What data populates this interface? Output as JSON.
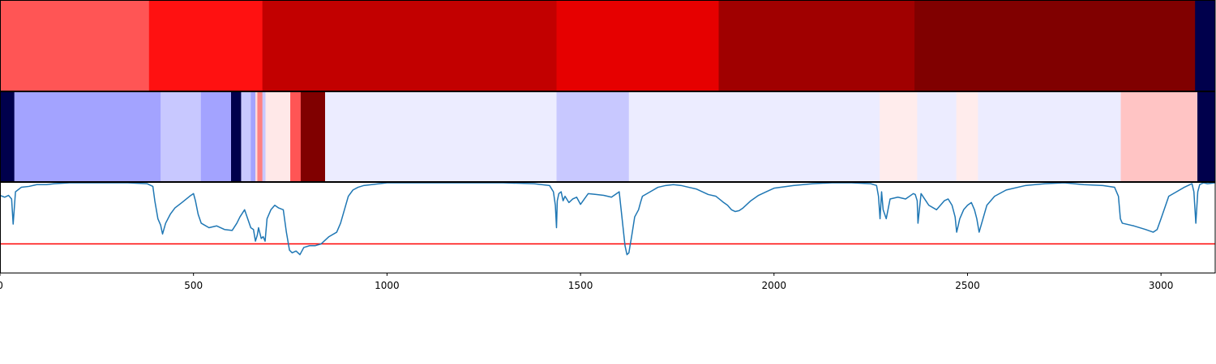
{
  "chart_data": {
    "type": "heatmap",
    "x_ticks": [
      0,
      500,
      1000,
      1500,
      2000,
      2500,
      3000
    ],
    "xlim": [
      0,
      3140
    ],
    "rows": [
      {
        "segments": [
          {
            "start": 0,
            "end": 385,
            "color": "#ff5555"
          },
          {
            "start": 385,
            "end": 678,
            "color": "#ff1111"
          },
          {
            "start": 678,
            "end": 1438,
            "color": "#c20000"
          },
          {
            "start": 1438,
            "end": 1857,
            "color": "#e60000"
          },
          {
            "start": 1857,
            "end": 2363,
            "color": "#a00000"
          },
          {
            "start": 2363,
            "end": 3088,
            "color": "#800000"
          },
          {
            "start": 3088,
            "end": 3140,
            "color": "#00004c"
          }
        ]
      },
      {
        "segments": [
          {
            "start": 0,
            "end": 37,
            "color": "#00004c"
          },
          {
            "start": 37,
            "end": 415,
            "color": "#a3a3ff"
          },
          {
            "start": 415,
            "end": 519,
            "color": "#c8c8ff"
          },
          {
            "start": 519,
            "end": 597,
            "color": "#a3a3ff"
          },
          {
            "start": 597,
            "end": 623,
            "color": "#00004c"
          },
          {
            "start": 623,
            "end": 648,
            "color": "#c8c8ff"
          },
          {
            "start": 648,
            "end": 660,
            "color": "#a3a3ff"
          },
          {
            "start": 660,
            "end": 665,
            "color": "#ffdcdc"
          },
          {
            "start": 665,
            "end": 678,
            "color": "#ff8080"
          },
          {
            "start": 678,
            "end": 686,
            "color": "#c8c8ff"
          },
          {
            "start": 686,
            "end": 750,
            "color": "#ffe8e8"
          },
          {
            "start": 750,
            "end": 777,
            "color": "#ff5555"
          },
          {
            "start": 777,
            "end": 840,
            "color": "#800000"
          },
          {
            "start": 840,
            "end": 1438,
            "color": "#ececff"
          },
          {
            "start": 1438,
            "end": 1625,
            "color": "#c8c8ff"
          },
          {
            "start": 1625,
            "end": 2273,
            "color": "#ececff"
          },
          {
            "start": 2273,
            "end": 2370,
            "color": "#ffecec"
          },
          {
            "start": 2370,
            "end": 2471,
            "color": "#ececff"
          },
          {
            "start": 2471,
            "end": 2527,
            "color": "#ffecec"
          },
          {
            "start": 2527,
            "end": 2896,
            "color": "#ececff"
          },
          {
            "start": 2896,
            "end": 3094,
            "color": "#ffc4c4"
          },
          {
            "start": 3094,
            "end": 3140,
            "color": "#00004c"
          }
        ]
      }
    ],
    "line": {
      "color": "#1f77b4",
      "ylim": [
        0,
        1
      ],
      "x": [
        0,
        12,
        22,
        30,
        34,
        40,
        55,
        75,
        95,
        120,
        140,
        180,
        250,
        330,
        380,
        395,
        400,
        408,
        415,
        420,
        428,
        440,
        452,
        470,
        490,
        500,
        505,
        512,
        520,
        540,
        560,
        580,
        600,
        612,
        620,
        632,
        640,
        648,
        655,
        660,
        665,
        668,
        675,
        680,
        685,
        690,
        700,
        710,
        720,
        732,
        740,
        748,
        755,
        765,
        775,
        785,
        800,
        815,
        830,
        850,
        870,
        880,
        890,
        900,
        912,
        925,
        940,
        960,
        980,
        1000,
        1100,
        1200,
        1300,
        1380,
        1420,
        1430,
        1435,
        1438,
        1440,
        1444,
        1450,
        1455,
        1460,
        1470,
        1480,
        1490,
        1500,
        1510,
        1520,
        1540,
        1560,
        1580,
        1600,
        1605,
        1610,
        1615,
        1620,
        1625,
        1628,
        1632,
        1640,
        1650,
        1655,
        1660,
        1680,
        1700,
        1720,
        1740,
        1760,
        1780,
        1800,
        1830,
        1850,
        1870,
        1880,
        1890,
        1900,
        1910,
        1920,
        1940,
        1960,
        1980,
        2000,
        2050,
        2100,
        2150,
        2200,
        2250,
        2265,
        2270,
        2274,
        2278,
        2282,
        2290,
        2300,
        2320,
        2340,
        2360,
        2365,
        2370,
        2372,
        2380,
        2400,
        2420,
        2440,
        2450,
        2460,
        2468,
        2472,
        2480,
        2490,
        2500,
        2510,
        2518,
        2524,
        2530,
        2550,
        2570,
        2600,
        2650,
        2700,
        2750,
        2800,
        2850,
        2880,
        2890,
        2895,
        2900,
        2930,
        2960,
        2980,
        2990,
        3000,
        3020,
        3040,
        3060,
        3080,
        3085,
        3090,
        3095,
        3100,
        3110,
        3120,
        3140
      ],
      "y": [
        0.86,
        0.84,
        0.86,
        0.82,
        0.54,
        0.9,
        0.95,
        0.96,
        0.98,
        0.98,
        0.99,
        1.0,
        1.0,
        1.0,
        0.99,
        0.96,
        0.8,
        0.6,
        0.53,
        0.43,
        0.55,
        0.65,
        0.72,
        0.78,
        0.85,
        0.88,
        0.8,
        0.65,
        0.55,
        0.5,
        0.52,
        0.48,
        0.47,
        0.55,
        0.62,
        0.7,
        0.6,
        0.5,
        0.48,
        0.35,
        0.42,
        0.5,
        0.38,
        0.4,
        0.35,
        0.6,
        0.7,
        0.75,
        0.72,
        0.7,
        0.45,
        0.25,
        0.22,
        0.24,
        0.2,
        0.28,
        0.3,
        0.3,
        0.32,
        0.4,
        0.45,
        0.55,
        0.7,
        0.85,
        0.92,
        0.95,
        0.97,
        0.98,
        0.99,
        1.0,
        1.0,
        1.0,
        1.0,
        0.99,
        0.97,
        0.9,
        0.75,
        0.5,
        0.8,
        0.88,
        0.9,
        0.8,
        0.85,
        0.78,
        0.82,
        0.84,
        0.76,
        0.82,
        0.88,
        0.87,
        0.86,
        0.84,
        0.9,
        0.7,
        0.5,
        0.3,
        0.2,
        0.22,
        0.3,
        0.4,
        0.62,
        0.7,
        0.78,
        0.85,
        0.9,
        0.95,
        0.97,
        0.98,
        0.97,
        0.95,
        0.93,
        0.87,
        0.85,
        0.78,
        0.75,
        0.7,
        0.68,
        0.69,
        0.72,
        0.8,
        0.86,
        0.9,
        0.94,
        0.97,
        0.99,
        1.0,
        1.0,
        0.99,
        0.97,
        0.85,
        0.6,
        0.9,
        0.7,
        0.6,
        0.82,
        0.84,
        0.82,
        0.88,
        0.87,
        0.8,
        0.55,
        0.88,
        0.75,
        0.7,
        0.8,
        0.82,
        0.75,
        0.62,
        0.45,
        0.6,
        0.7,
        0.75,
        0.78,
        0.7,
        0.6,
        0.45,
        0.75,
        0.85,
        0.92,
        0.97,
        0.99,
        1.0,
        0.98,
        0.97,
        0.95,
        0.85,
        0.6,
        0.55,
        0.52,
        0.48,
        0.45,
        0.48,
        0.6,
        0.85,
        0.9,
        0.95,
        0.99,
        0.9,
        0.55,
        0.9,
        0.98,
        1.0,
        0.99,
        1.0
      ]
    },
    "threshold": {
      "y": 0.32,
      "color": "#ff0000"
    }
  }
}
